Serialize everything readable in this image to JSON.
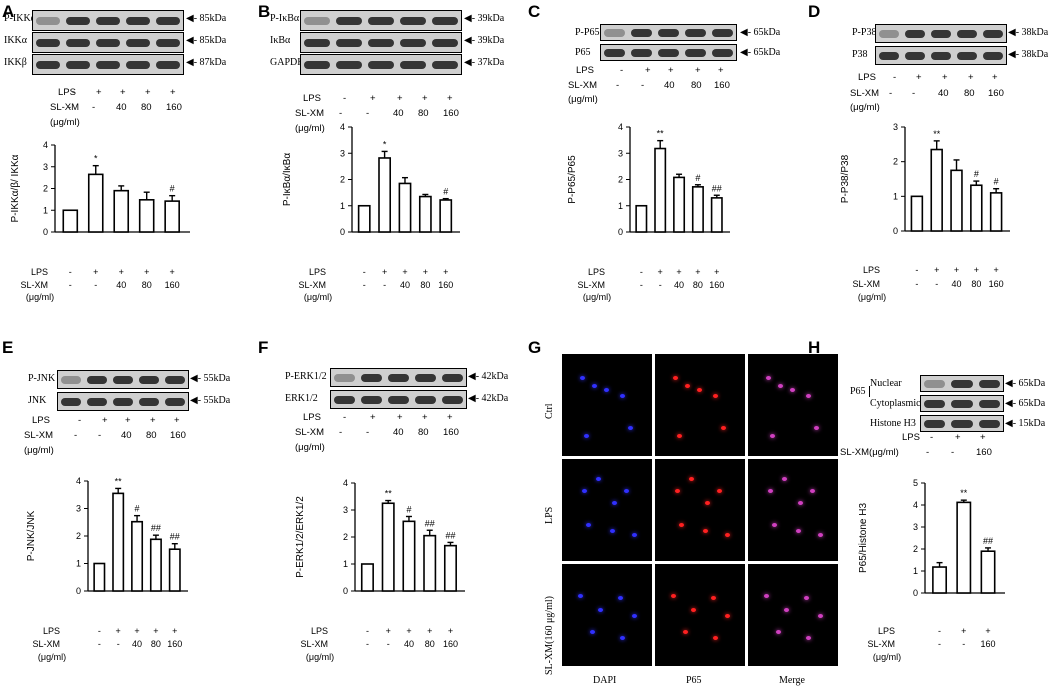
{
  "panels": [
    {
      "letter": "A",
      "blots": [
        {
          "label": "P-IKKα/β",
          "mw": "85kDa"
        },
        {
          "label": "IKKα",
          "mw": "85kDa"
        },
        {
          "label": "IKKβ",
          "mw": "87kDa"
        }
      ],
      "treatment_top": {
        "lps_label": "LPS",
        "slxm_label": "SL-XM",
        "unit": "(μg/ml)",
        "lps": [
          "-",
          "+",
          "+",
          "+",
          "+"
        ],
        "slxm": [
          "-",
          "-",
          "40",
          "80",
          "160"
        ]
      },
      "chart_data": {
        "type": "bar",
        "ylabel": "P-IKKα/β/ IKKα",
        "ylim": [
          0,
          4
        ],
        "yticks": [
          "0",
          "1",
          "2",
          "3",
          "4"
        ],
        "values": [
          1.0,
          2.65,
          1.9,
          1.48,
          1.42
        ],
        "errors": [
          0,
          0.4,
          0.22,
          0.35,
          0.25
        ],
        "marks": [
          "",
          "*",
          "",
          "",
          "#"
        ],
        "lps": [
          "-",
          "+",
          "+",
          "+",
          "+"
        ],
        "slxm": [
          "-",
          "-",
          "40",
          "80",
          "160"
        ],
        "lps_label": "LPS",
        "slxm_label": "SL-XM",
        "unit": "(μg/ml)"
      }
    },
    {
      "letter": "B",
      "blots": [
        {
          "label": "P-IκBα",
          "mw": "39kDa"
        },
        {
          "label": "IκBα",
          "mw": "39kDa"
        },
        {
          "label": "GAPDH",
          "mw": "37kDa"
        }
      ],
      "treatment_top": {
        "lps_label": "LPS",
        "slxm_label": "SL-XM",
        "unit": "(μg/ml)",
        "lps": [
          "-",
          "+",
          "+",
          "+",
          "+"
        ],
        "slxm": [
          "-",
          "-",
          "40",
          "80",
          "160"
        ]
      },
      "chart_data": {
        "type": "bar",
        "ylabel": "P-IκBα/IκBα",
        "ylim": [
          0,
          4
        ],
        "yticks": [
          "0",
          "1",
          "2",
          "3",
          "4"
        ],
        "values": [
          1.0,
          2.82,
          1.85,
          1.35,
          1.22
        ],
        "errors": [
          0,
          0.25,
          0.22,
          0.08,
          0.05
        ],
        "marks": [
          "",
          "*",
          "",
          "",
          "#"
        ],
        "lps": [
          "-",
          "+",
          "+",
          "+",
          "+"
        ],
        "slxm": [
          "-",
          "-",
          "40",
          "80",
          "160"
        ],
        "lps_label": "LPS",
        "slxm_label": "SL-XM",
        "unit": "(μg/ml)"
      }
    },
    {
      "letter": "C",
      "blots": [
        {
          "label": "P-P65",
          "mw": "65kDa"
        },
        {
          "label": "P65",
          "mw": "65kDa"
        }
      ],
      "treatment_top": {
        "lps_label": "LPS",
        "slxm_label": "SL-XM",
        "unit": "(μg/ml)",
        "lps": [
          "-",
          "+",
          "+",
          "+",
          "+"
        ],
        "slxm": [
          "-",
          "-",
          "40",
          "80",
          "160"
        ]
      },
      "chart_data": {
        "type": "bar",
        "ylabel": "P-P65/P65",
        "ylim": [
          0,
          4
        ],
        "yticks": [
          "0",
          "1",
          "2",
          "3",
          "4"
        ],
        "values": [
          1.0,
          3.18,
          2.08,
          1.72,
          1.3
        ],
        "errors": [
          0,
          0.3,
          0.12,
          0.08,
          0.1
        ],
        "marks": [
          "",
          "**",
          "",
          "#",
          "##"
        ],
        "lps": [
          "-",
          "+",
          "+",
          "+",
          "+"
        ],
        "slxm": [
          "-",
          "-",
          "40",
          "80",
          "160"
        ],
        "lps_label": "LPS",
        "slxm_label": "SL-XM",
        "unit": "(μg/ml)"
      }
    },
    {
      "letter": "D",
      "blots": [
        {
          "label": "P-P38",
          "mw": "38kDa"
        },
        {
          "label": "P38",
          "mw": "38kDa"
        }
      ],
      "treatment_top": {
        "lps_label": "LPS",
        "slxm_label": "SL-XM",
        "unit": "(μg/ml)",
        "lps": [
          "-",
          "+",
          "+",
          "+",
          "+"
        ],
        "slxm": [
          "-",
          "-",
          "40",
          "80",
          "160"
        ]
      },
      "chart_data": {
        "type": "bar",
        "ylabel": "P-P38/P38",
        "ylim": [
          0,
          3
        ],
        "yticks": [
          "0",
          "1",
          "2",
          "3"
        ],
        "values": [
          1.0,
          2.35,
          1.75,
          1.32,
          1.1
        ],
        "errors": [
          0,
          0.25,
          0.3,
          0.12,
          0.12
        ],
        "marks": [
          "",
          "**",
          "",
          "#",
          "#"
        ],
        "lps": [
          "-",
          "+",
          "+",
          "+",
          "+"
        ],
        "slxm": [
          "-",
          "-",
          "40",
          "80",
          "160"
        ],
        "lps_label": "LPS",
        "slxm_label": "SL-XM",
        "unit": "(μg/ml)"
      }
    },
    {
      "letter": "E",
      "blots": [
        {
          "label": "P-JNK",
          "mw": "55kDa"
        },
        {
          "label": "JNK",
          "mw": "55kDa"
        }
      ],
      "treatment_top": {
        "lps_label": "LPS",
        "slxm_label": "SL-XM",
        "unit": "(μg/ml)",
        "lps": [
          "-",
          "+",
          "+",
          "+",
          "+"
        ],
        "slxm": [
          "-",
          "-",
          "40",
          "80",
          "160"
        ]
      },
      "chart_data": {
        "type": "bar",
        "ylabel": "P-JNK/JNK",
        "ylim": [
          0,
          4
        ],
        "yticks": [
          "0",
          "1",
          "2",
          "3",
          "4"
        ],
        "values": [
          1.0,
          3.55,
          2.52,
          1.88,
          1.52
        ],
        "errors": [
          0,
          0.18,
          0.22,
          0.15,
          0.2
        ],
        "marks": [
          "",
          "**",
          "#",
          "##",
          "##"
        ],
        "lps": [
          "-",
          "+",
          "+",
          "+",
          "+"
        ],
        "slxm": [
          "-",
          "-",
          "40",
          "80",
          "160"
        ],
        "lps_label": "LPS",
        "slxm_label": "SL-XM",
        "unit": "(μg/ml)"
      }
    },
    {
      "letter": "F",
      "blots": [
        {
          "label": "P-ERK1/2",
          "mw": "42kDa"
        },
        {
          "label": "ERK1/2",
          "mw": "42kDa"
        }
      ],
      "treatment_top": {
        "lps_label": "LPS",
        "slxm_label": "SL-XM",
        "unit": "(μg/ml)",
        "lps": [
          "-",
          "+",
          "+",
          "+",
          "+"
        ],
        "slxm": [
          "-",
          "-",
          "40",
          "80",
          "160"
        ]
      },
      "chart_data": {
        "type": "bar",
        "ylabel": "P-ERK1/2/ERK1/2",
        "ylim": [
          0,
          4
        ],
        "yticks": [
          "0",
          "1",
          "2",
          "3",
          "4"
        ],
        "values": [
          1.0,
          3.25,
          2.58,
          2.05,
          1.68
        ],
        "errors": [
          0,
          0.1,
          0.18,
          0.2,
          0.12
        ],
        "marks": [
          "",
          "**",
          "#",
          "##",
          "##"
        ],
        "lps": [
          "-",
          "+",
          "+",
          "+",
          "+"
        ],
        "slxm": [
          "-",
          "-",
          "40",
          "80",
          "160"
        ],
        "lps_label": "LPS",
        "slxm_label": "SL-XM",
        "unit": "(μg/ml)"
      }
    },
    {
      "letter": "G",
      "rows": [
        "Ctrl",
        "LPS",
        "SL-XM(160 μg/ml)"
      ],
      "columns": [
        "DAPI",
        "P65",
        "Merge"
      ],
      "colors": {
        "DAPI": "#3030ff",
        "P65": "#ff2020",
        "Merge": "#d040c0"
      }
    },
    {
      "letter": "H",
      "blots": [
        {
          "label": "Nuclear",
          "mw": "65kDa"
        },
        {
          "label": "Cytoplasmic",
          "mw": "65kDa"
        },
        {
          "label": "Histone H3",
          "mw": "15kDa"
        }
      ],
      "group_label": "P65",
      "treatment_top": {
        "lps_label": "LPS",
        "slxm_label": "SL-XM(μg/ml)",
        "lps": [
          "-",
          "+",
          "+"
        ],
        "slxm": [
          "-",
          "-",
          "160"
        ]
      },
      "chart_data": {
        "type": "bar",
        "ylabel": "P65/Histone H3",
        "ylim": [
          0,
          5
        ],
        "yticks": [
          "0",
          "1",
          "2",
          "3",
          "4",
          "5"
        ],
        "values": [
          1.18,
          4.12,
          1.9
        ],
        "errors": [
          0.2,
          0.1,
          0.15
        ],
        "marks": [
          "",
          "**",
          "##"
        ],
        "lps": [
          "-",
          "+",
          "+"
        ],
        "slxm": [
          "-",
          "-",
          "160"
        ],
        "lps_label": "LPS",
        "slxm_label": "SL-XM",
        "unit": "(μg/ml)"
      }
    }
  ]
}
